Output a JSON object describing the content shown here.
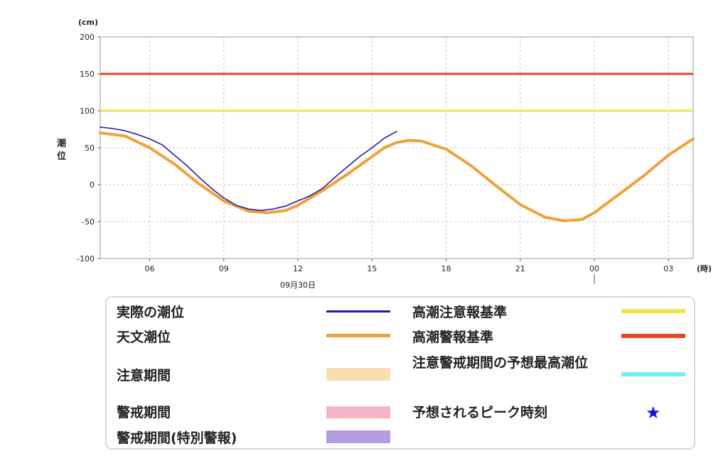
{
  "chart_data": {
    "type": "line",
    "y_unit": "(cm)",
    "x_unit": "(時)",
    "ylabel": "潮位",
    "ylim": [
      -100,
      200
    ],
    "yticks": [
      200,
      150,
      100,
      50,
      0,
      -50,
      -100
    ],
    "xlim_hours": [
      4.0,
      28.0
    ],
    "xticks": [
      {
        "hour": 6,
        "label": "06"
      },
      {
        "hour": 9,
        "label": "09"
      },
      {
        "hour": 12,
        "label": "12"
      },
      {
        "hour": 15,
        "label": "15"
      },
      {
        "hour": 18,
        "label": "18"
      },
      {
        "hour": 21,
        "label": "21"
      },
      {
        "hour": 24,
        "label": "00"
      },
      {
        "hour": 27,
        "label": "03"
      }
    ],
    "date_label": {
      "hour": 12,
      "text": "09月30日"
    },
    "day_boundary_hour": 24,
    "grid": true,
    "thresholds": [
      {
        "name": "高潮注意報基準",
        "value": 100,
        "color": "#f2e34a"
      },
      {
        "name": "高潮警報基準",
        "value": 150,
        "color": "#e5462a"
      }
    ],
    "series": [
      {
        "name": "実際の潮位",
        "color": "#2a1aa6",
        "x": [
          4.0,
          4.5,
          5.0,
          5.5,
          6.0,
          6.5,
          7.0,
          7.5,
          8.0,
          8.5,
          9.0,
          9.5,
          10.0,
          10.5,
          11.0,
          11.5,
          12.0,
          12.5,
          13.0,
          13.5,
          14.0,
          14.5,
          15.0,
          15.5,
          16.0
        ],
        "y": [
          78,
          76,
          73,
          68,
          62,
          54,
          40,
          26,
          10,
          -5,
          -18,
          -28,
          -33,
          -35,
          -33,
          -29,
          -22,
          -15,
          -5,
          10,
          24,
          38,
          50,
          63,
          72
        ]
      },
      {
        "name": "天文潮位",
        "color": "#f0a13a",
        "x": [
          4.0,
          5.0,
          6.0,
          7.0,
          8.0,
          9.0,
          10.0,
          10.8,
          11.5,
          12.0,
          13.0,
          14.0,
          15.0,
          15.5,
          16.0,
          16.5,
          17.0,
          18.0,
          19.0,
          20.0,
          21.0,
          22.0,
          22.8,
          23.5,
          24.0,
          25.0,
          26.0,
          27.0,
          28.0
        ],
        "y": [
          70,
          66,
          50,
          28,
          1,
          -22,
          -36,
          -38,
          -35,
          -28,
          -8,
          14,
          38,
          50,
          57,
          60,
          59,
          48,
          26,
          -1,
          -27,
          -44,
          -49,
          -47,
          -38,
          -13,
          12,
          40,
          62
        ]
      }
    ]
  },
  "legend": {
    "items": [
      {
        "label": "実際の潮位",
        "type": "line",
        "color": "#2a1aa6"
      },
      {
        "label": "天文潮位",
        "type": "line",
        "color": "#f0a13a"
      },
      {
        "label": "注意期間",
        "type": "band",
        "color": "#f7dfb3"
      },
      {
        "label": "警戒期間",
        "type": "band",
        "color": "#f5b3c8"
      },
      {
        "label": "警戒期間(特別警報)",
        "type": "band",
        "color": "#b39ce0"
      },
      {
        "label": "高潮注意報基準",
        "type": "line",
        "color": "#f2e34a"
      },
      {
        "label": "高潮警報基準",
        "type": "line",
        "color": "#e5462a"
      },
      {
        "label": "注意警戒期間の予想最高潮位",
        "type": "line",
        "color": "#6ff0f5"
      },
      {
        "label": "予想されるピーク時刻",
        "type": "star",
        "color": "#1010e0"
      }
    ]
  }
}
